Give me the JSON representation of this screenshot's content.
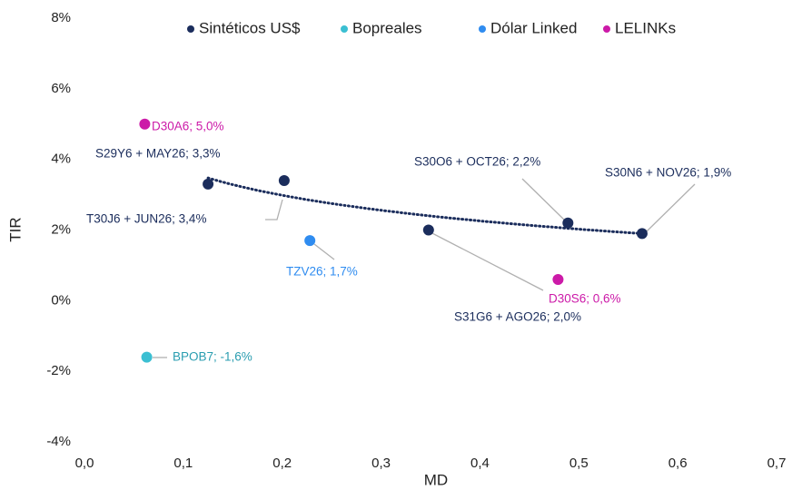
{
  "chart_data": {
    "type": "scatter",
    "x_label": "MD",
    "y_label": "TIR",
    "xlim": [
      0,
      0.7
    ],
    "ylim": [
      -4,
      8
    ],
    "xticks": [
      {
        "value": 0,
        "label": "0,0"
      },
      {
        "value": 0.1,
        "label": "0,1"
      },
      {
        "value": 0.2,
        "label": "0,2"
      },
      {
        "value": 0.3,
        "label": "0,3"
      },
      {
        "value": 0.4,
        "label": "0,4"
      },
      {
        "value": 0.5,
        "label": "0,5"
      },
      {
        "value": 0.6,
        "label": "0,6"
      },
      {
        "value": 0.7,
        "label": "0,7"
      }
    ],
    "yticks": [
      {
        "value": -4,
        "label": "-4%"
      },
      {
        "value": -2,
        "label": "-2%"
      },
      {
        "value": 0,
        "label": "0%"
      },
      {
        "value": 2,
        "label": "2%"
      },
      {
        "value": 4,
        "label": "4%"
      },
      {
        "value": 6,
        "label": "6%"
      },
      {
        "value": 8,
        "label": "8%"
      }
    ],
    "legend": "top",
    "trendline": true,
    "series": [
      {
        "name": "Sintéticos US$",
        "color": "#1b2d5c",
        "label_color": "#1b2d5c",
        "x": [
          0.125,
          0.202,
          0.348,
          0.489,
          0.564
        ],
        "values": [
          3.3,
          3.4,
          2.0,
          2.2,
          1.9
        ],
        "value_labels": [
          "S29Y6 + MAY26; 3,3%",
          "T30J6 + JUN26; 3,4%",
          "S31G6 + AGO26; 2,0%",
          "S30O6 + OCT26; 2,2%",
          "S30N6 + NOV26; 1,9%"
        ]
      },
      {
        "name": "Bopreales",
        "color": "#3bbfd2",
        "label_color": "#2a9db0",
        "x": [
          0.063
        ],
        "values": [
          -1.6
        ],
        "value_labels": [
          "BPOB7; -1,6%"
        ]
      },
      {
        "name": "Dólar Linked",
        "color": "#2f8cf0",
        "label_color": "#2f8cf0",
        "x": [
          0.228
        ],
        "values": [
          1.7
        ],
        "value_labels": [
          "TZV26; 1,7%"
        ]
      },
      {
        "name": "LELINKs",
        "color": "#cc1aa8",
        "label_color": "#cc1aa8",
        "x": [
          0.061,
          0.479
        ],
        "values": [
          5.0,
          0.6
        ],
        "value_labels": [
          "D30A6; 5,0%",
          "D30S6; 0,6%"
        ]
      }
    ]
  }
}
